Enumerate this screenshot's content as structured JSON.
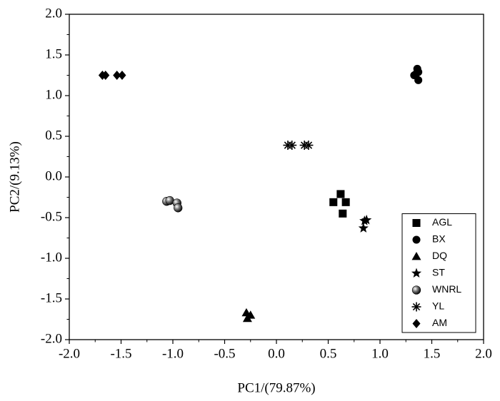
{
  "chart_data": {
    "type": "scatter",
    "x_label": "PC1/(79.87%)",
    "y_label": "PC2/(9.13%)",
    "xlim": [
      -2.0,
      2.0
    ],
    "ylim": [
      -2.0,
      2.0
    ],
    "xticks": [
      {
        "value": -2.0,
        "label": "-2.0"
      },
      {
        "value": -1.5,
        "label": "-1.5"
      },
      {
        "value": -1.0,
        "label": "-1.0"
      },
      {
        "value": -0.5,
        "label": "-0.5"
      },
      {
        "value": 0,
        "label": "0.0"
      },
      0.5,
      {
        "value": 1.0,
        "label": "1.0"
      },
      1.5,
      {
        "value": 2.0,
        "label": "2.0"
      }
    ],
    "yticks": [
      {
        "value": -2.0,
        "label": "-2.0"
      },
      {
        "value": -1.5,
        "label": "-1.5"
      },
      {
        "value": -1.0,
        "label": "-1.0"
      },
      {
        "value": -0.5,
        "label": "-0.5"
      },
      {
        "value": 0,
        "label": "0.0"
      },
      0.5,
      {
        "value": 1.0,
        "label": "1.0"
      },
      1.5,
      {
        "value": 2.0,
        "label": "2.0"
      }
    ],
    "minor_ticks": true,
    "legend": "lower right",
    "series": [
      {
        "name": "AGL",
        "marker": "square",
        "color": "#000000",
        "x": [
          0.55,
          0.62,
          0.67,
          0.64
        ],
        "y": [
          -0.31,
          -0.21,
          -0.31,
          -0.45
        ]
      },
      {
        "name": "BX",
        "marker": "circle",
        "color": "#000000",
        "x": [
          1.33,
          1.36,
          1.37,
          1.37,
          1.35
        ],
        "y": [
          1.25,
          1.33,
          1.29,
          1.19,
          1.27
        ]
      },
      {
        "name": "DQ",
        "marker": "triangle",
        "color": "#000000",
        "x": [
          -0.29,
          -0.25,
          -0.28
        ],
        "y": [
          -1.67,
          -1.7,
          -1.74
        ]
      },
      {
        "name": "ST",
        "marker": "star",
        "color": "#000000",
        "x": [
          0.87,
          0.84,
          0.85
        ],
        "y": [
          -0.53,
          -0.63,
          -0.54
        ]
      },
      {
        "name": "WNRL",
        "marker": "sphere",
        "color": "#000000",
        "x": [
          -1.06,
          -1.03,
          -0.96,
          -0.95
        ],
        "y": [
          -0.3,
          -0.29,
          -0.32,
          -0.38
        ]
      },
      {
        "name": "YL",
        "marker": "asterisk",
        "color": "#000000",
        "x": [
          0.11,
          0.15,
          0.27,
          0.31
        ],
        "y": [
          0.39,
          0.39,
          0.39,
          0.39
        ]
      },
      {
        "name": "AM",
        "marker": "diamond",
        "color": "#000000",
        "x": [
          -1.68,
          -1.65,
          -1.54,
          -1.49
        ],
        "y": [
          1.25,
          1.25,
          1.25,
          1.25
        ]
      }
    ]
  }
}
